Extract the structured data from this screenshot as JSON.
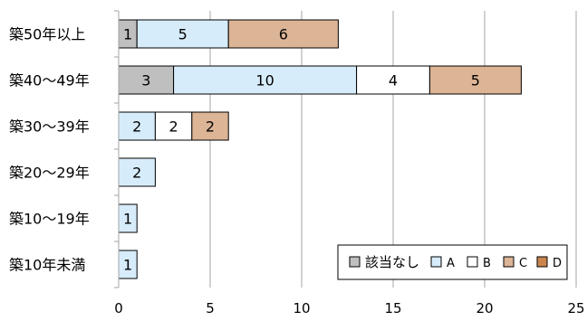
{
  "chart_data": {
    "type": "bar",
    "orientation": "horizontal",
    "stacked": true,
    "categories": [
      "築50年以上",
      "築40～49年",
      "築30～39年",
      "築20～29年",
      "築10～19年",
      "築10年未満"
    ],
    "series": [
      {
        "name": "該当なし",
        "color": "#bfbfbf",
        "values": [
          1,
          3,
          0,
          0,
          0,
          0
        ]
      },
      {
        "name": "A",
        "color": "#d7ecfb",
        "values": [
          5,
          10,
          2,
          2,
          1,
          1
        ]
      },
      {
        "name": "B",
        "color": "#ffffff",
        "values": [
          0,
          4,
          2,
          0,
          0,
          0
        ]
      },
      {
        "name": "C",
        "color": "#dcb496",
        "values": [
          6,
          5,
          2,
          0,
          0,
          0
        ]
      },
      {
        "name": "D",
        "color": "#c8864e",
        "values": [
          0,
          0,
          0,
          0,
          0,
          0
        ]
      }
    ],
    "xlim": [
      0,
      25
    ],
    "xticks": [
      0,
      5,
      10,
      15,
      20,
      25
    ],
    "grid": true,
    "legend_position": "bottom-right"
  }
}
